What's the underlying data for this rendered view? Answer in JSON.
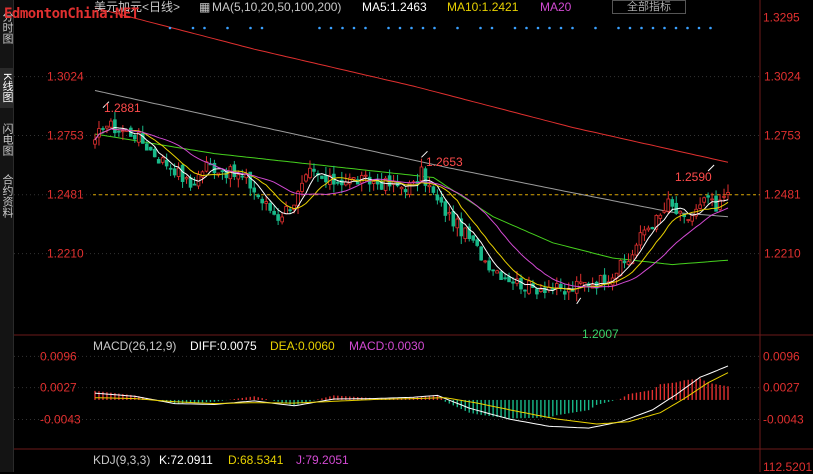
{
  "watermark": "EdmontonChina.NET",
  "sidebar": {
    "tabs": [
      "分时图",
      "K线图",
      "闪电图",
      "合约资料"
    ]
  },
  "header": {
    "symbol_label": "美元加元<日线>",
    "ma_label": "MA(5,10,20,50,100,200)",
    "ma5": "MA5:1.2463",
    "ma10": "MA10:1.2421",
    "ma20": "MA20",
    "all_label": "全部指标"
  },
  "colors": {
    "up": "#e0302f",
    "down": "#18b889",
    "ma5": "#ffffff",
    "ma10": "#e8d100",
    "ma20": "#d24ad2",
    "ma50": "#46d21e",
    "ma100": "#9b9b9b",
    "ma200": "#e0302f",
    "axis_text": "#e0302f",
    "grid": "#333333"
  },
  "chart_data": [
    {
      "type": "candlestick",
      "title": "美元加元<日线>",
      "y_ticks": [
        "1.3295",
        "1.3024",
        "1.2753",
        "1.2481",
        "1.2210"
      ],
      "y_tick_values": [
        1.3295,
        1.3024,
        1.2753,
        1.2481,
        1.221
      ],
      "ylim": [
        1.185,
        1.333
      ],
      "current_price": 1.2481,
      "annotations": [
        {
          "label": "1.2881",
          "value": 1.2881,
          "index": 2
        },
        {
          "label": "1.2653",
          "value": 1.2653,
          "index": 82
        },
        {
          "label": "1.2007",
          "value": 1.2007,
          "index": 122
        },
        {
          "label": "1.2590",
          "value": 1.259,
          "index": 154
        }
      ],
      "x_count": 160,
      "key_closes": [
        [
          0,
          1.271
        ],
        [
          2,
          1.281
        ],
        [
          6,
          1.278
        ],
        [
          10,
          1.276
        ],
        [
          16,
          1.265
        ],
        [
          20,
          1.26
        ],
        [
          24,
          1.252
        ],
        [
          28,
          1.262
        ],
        [
          34,
          1.258
        ],
        [
          38,
          1.255
        ],
        [
          42,
          1.245
        ],
        [
          46,
          1.238
        ],
        [
          50,
          1.245
        ],
        [
          54,
          1.258
        ],
        [
          58,
          1.254
        ],
        [
          64,
          1.255
        ],
        [
          70,
          1.254
        ],
        [
          76,
          1.252
        ],
        [
          80,
          1.252
        ],
        [
          82,
          1.258
        ],
        [
          86,
          1.245
        ],
        [
          90,
          1.236
        ],
        [
          94,
          1.228
        ],
        [
          98,
          1.218
        ],
        [
          102,
          1.212
        ],
        [
          106,
          1.208
        ],
        [
          110,
          1.205
        ],
        [
          114,
          1.206
        ],
        [
          118,
          1.203
        ],
        [
          122,
          1.207
        ],
        [
          126,
          1.208
        ],
        [
          130,
          1.212
        ],
        [
          134,
          1.218
        ],
        [
          138,
          1.232
        ],
        [
          142,
          1.238
        ],
        [
          144,
          1.244
        ],
        [
          148,
          1.236
        ],
        [
          152,
          1.242
        ],
        [
          154,
          1.247
        ],
        [
          156,
          1.24
        ],
        [
          159,
          1.252
        ]
      ],
      "mas": [
        {
          "name": "MA5",
          "value": "1.2463"
        },
        {
          "name": "MA10",
          "value": "1.2421"
        },
        {
          "name": "MA20"
        }
      ],
      "ma200_points": [
        [
          0,
          1.334
        ],
        [
          40,
          1.315
        ],
        [
          80,
          1.298
        ],
        [
          120,
          1.279
        ],
        [
          159,
          1.263
        ]
      ],
      "ma100_points": [
        [
          0,
          1.296
        ],
        [
          30,
          1.284
        ],
        [
          60,
          1.272
        ],
        [
          90,
          1.26
        ],
        [
          120,
          1.249
        ],
        [
          145,
          1.24
        ],
        [
          159,
          1.238
        ]
      ],
      "ma50_points": [
        [
          0,
          1.276
        ],
        [
          30,
          1.267
        ],
        [
          60,
          1.261
        ],
        [
          85,
          1.256
        ],
        [
          100,
          1.238
        ],
        [
          115,
          1.226
        ],
        [
          130,
          1.219
        ],
        [
          145,
          1.216
        ],
        [
          159,
          1.218
        ]
      ]
    },
    {
      "type": "macd",
      "title": "MACD(26,12,9)",
      "diff": "DIFF:0.0075",
      "dea": "DEA:0.0060",
      "macd": "MACD:0.0030",
      "y_ticks": [
        "0.0096",
        "0.0027",
        "-0.0043"
      ],
      "y_tick_values": [
        0.0096,
        0.0027,
        -0.0043
      ],
      "ylim": [
        -0.0075,
        0.011
      ],
      "diff_points": [
        [
          0,
          0.0015
        ],
        [
          10,
          0.0008
        ],
        [
          20,
          -0.0008
        ],
        [
          30,
          -0.001
        ],
        [
          40,
          -0.0002
        ],
        [
          50,
          -0.0013
        ],
        [
          60,
          0.0002
        ],
        [
          70,
          0.0003
        ],
        [
          80,
          0.0006
        ],
        [
          86,
          0.001
        ],
        [
          94,
          -0.0018
        ],
        [
          104,
          -0.0042
        ],
        [
          114,
          -0.0058
        ],
        [
          124,
          -0.0062
        ],
        [
          132,
          -0.0048
        ],
        [
          140,
          -0.0022
        ],
        [
          146,
          0.0012
        ],
        [
          152,
          0.005
        ],
        [
          156,
          0.0064
        ],
        [
          159,
          0.0075
        ]
      ],
      "dea_points": [
        [
          0,
          0.0005
        ],
        [
          10,
          0.0003
        ],
        [
          20,
          -0.0004
        ],
        [
          30,
          -0.0008
        ],
        [
          40,
          -0.0006
        ],
        [
          50,
          -0.0007
        ],
        [
          60,
          -0.0003
        ],
        [
          70,
          0.0001
        ],
        [
          80,
          0.0003
        ],
        [
          88,
          0.0005
        ],
        [
          96,
          -0.0007
        ],
        [
          106,
          -0.0025
        ],
        [
          116,
          -0.0042
        ],
        [
          126,
          -0.0053
        ],
        [
          134,
          -0.0048
        ],
        [
          142,
          -0.0028
        ],
        [
          148,
          0.0003
        ],
        [
          154,
          0.0038
        ],
        [
          159,
          0.006
        ]
      ]
    },
    {
      "type": "kdj",
      "title": "KDJ(9,3,3)",
      "k": "K:72.0911",
      "d": "D:68.5341",
      "j": "J:79.2051",
      "y_tick_partial": "112.5201"
    }
  ],
  "price_labels": {
    "p1": "1.2881",
    "p2": "1.2653",
    "p3": "1.2007",
    "p4": "1.2590"
  }
}
